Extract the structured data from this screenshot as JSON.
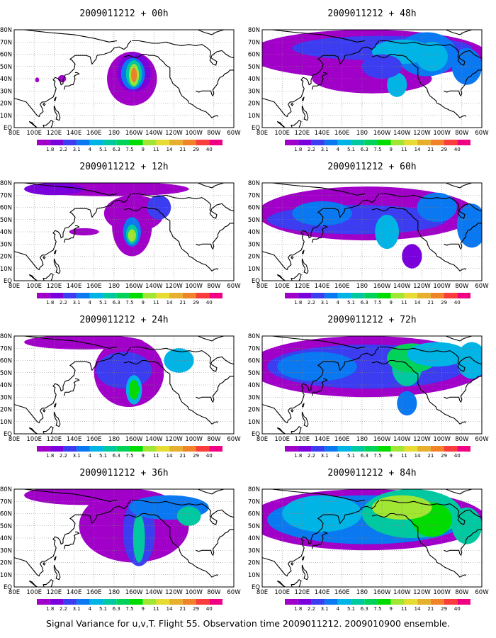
{
  "caption": "Signal Variance for u,v,T. Flight 55. Observation time 2009011212. 2009010900 ensemble.",
  "colorbar": {
    "labels": [
      "1.8",
      "2.2",
      "3.1",
      "4",
      "5.1",
      "6.3",
      "7.5",
      "9",
      "11",
      "14",
      "21",
      "29",
      "40"
    ],
    "colors": [
      "#a000c8",
      "#7a00dc",
      "#3c3cf0",
      "#0a78f0",
      "#00b4e6",
      "#00c8a0",
      "#00d25a",
      "#00dc00",
      "#a0e632",
      "#e6dc32",
      "#e6af2d",
      "#f08228",
      "#fa3c3c",
      "#f00082"
    ]
  },
  "map": {
    "lon_ticks": [
      "80E",
      "100E",
      "120E",
      "140E",
      "160E",
      "180",
      "160W",
      "140W",
      "120W",
      "100W",
      "80W",
      "60W"
    ],
    "lat_ticks": [
      "EQ",
      "10N",
      "20N",
      "30N",
      "40N",
      "50N",
      "60N",
      "70N",
      "80N"
    ]
  },
  "chart_data": [
    {
      "type": "heatmap",
      "title": "2009011212 + 00h",
      "lead_hours": 0,
      "xlim": [
        "80E",
        "60W"
      ],
      "ylim": [
        "EQ",
        "80N"
      ]
    },
    {
      "type": "heatmap",
      "title": "2009011212 + 48h",
      "lead_hours": 48,
      "xlim": [
        "80E",
        "60W"
      ],
      "ylim": [
        "EQ",
        "80N"
      ]
    },
    {
      "type": "heatmap",
      "title": "2009011212 + 12h",
      "lead_hours": 12,
      "xlim": [
        "80E",
        "60W"
      ],
      "ylim": [
        "EQ",
        "80N"
      ]
    },
    {
      "type": "heatmap",
      "title": "2009011212 + 60h",
      "lead_hours": 60,
      "xlim": [
        "80E",
        "60W"
      ],
      "ylim": [
        "EQ",
        "80N"
      ]
    },
    {
      "type": "heatmap",
      "title": "2009011212 + 24h",
      "lead_hours": 24,
      "xlim": [
        "80E",
        "60W"
      ],
      "ylim": [
        "EQ",
        "80N"
      ]
    },
    {
      "type": "heatmap",
      "title": "2009011212 + 72h",
      "lead_hours": 72,
      "xlim": [
        "80E",
        "60W"
      ],
      "ylim": [
        "EQ",
        "80N"
      ]
    },
    {
      "type": "heatmap",
      "title": "2009011212 + 36h",
      "lead_hours": 36,
      "xlim": [
        "80E",
        "60W"
      ],
      "ylim": [
        "EQ",
        "80N"
      ]
    },
    {
      "type": "heatmap",
      "title": "2009011212 + 84h",
      "lead_hours": 84,
      "xlim": [
        "80E",
        "60W"
      ],
      "ylim": [
        "EQ",
        "80N"
      ]
    }
  ]
}
